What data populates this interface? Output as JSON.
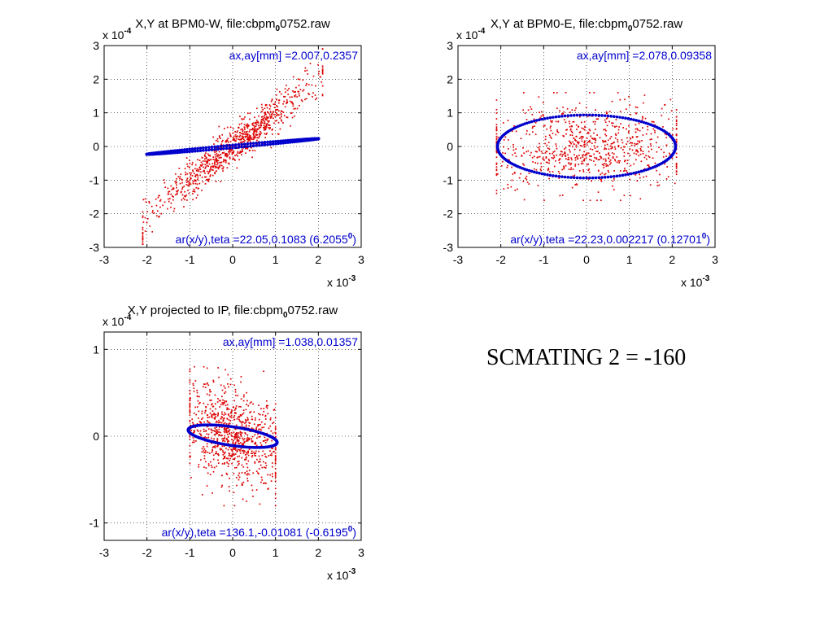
{
  "caption": "SCMATING 2 = -160",
  "colors": {
    "points": "#dd0000",
    "ellipse": "#0000cc",
    "annotation": "#0000cc"
  },
  "chart_data": [
    {
      "type": "scatter",
      "id": "bpm0w",
      "title_a": "X,Y at BPM0-W, file:cbpm",
      "title_sub": "0",
      "title_b": "0752.raw",
      "x_ticks": [
        "-3",
        "-2",
        "-1",
        "0",
        "1",
        "2",
        "3"
      ],
      "y_ticks": [
        "-3",
        "-2",
        "-1",
        "0",
        "1",
        "2",
        "3"
      ],
      "x_multiplier": "x 10",
      "x_exp": "-3",
      "y_multiplier": "x 10",
      "y_exp": "-4",
      "xlim": [
        -3,
        3
      ],
      "ylim": [
        -3,
        3
      ],
      "annotation_top": "ax,ay[mm] =2.007,0.2357",
      "annotation_bottom": "ar(x/y),teta =22.05,0.1083 (6.2055",
      "annotation_bottom_sup": "0",
      "annotation_bottom_end": ")",
      "ellipse": {
        "center": [
          0,
          0
        ],
        "ax": 2.007,
        "ay": 0.2357,
        "corr": 0.985
      },
      "scatter_stats": {
        "sx": 1.0,
        "sy": 1.05,
        "rho": 0.96,
        "x_clip": 2.1,
        "y_clip": 2.9,
        "n": 900
      }
    },
    {
      "type": "scatter",
      "id": "bpm0e",
      "title_a": "X,Y at BPM0-E, file:cbpm",
      "title_sub": "0",
      "title_b": "0752.raw",
      "x_ticks": [
        "-3",
        "-2",
        "-1",
        "0",
        "1",
        "2",
        "3"
      ],
      "y_ticks": [
        "-3",
        "-2",
        "-1",
        "0",
        "1",
        "2",
        "3"
      ],
      "x_multiplier": "x 10",
      "x_exp": "-3",
      "y_multiplier": "x 10",
      "y_exp": "-4",
      "xlim": [
        -3,
        3
      ],
      "ylim": [
        -3,
        3
      ],
      "annotation_top": "ax,ay[mm] =2.078,0.09358",
      "annotation_bottom": "ar(x/y),teta =22.23,0.002217 (0.12701",
      "annotation_bottom_sup": "0",
      "annotation_bottom_end": ")",
      "ellipse": {
        "center": [
          0,
          0
        ],
        "ax": 2.078,
        "ay": 0.9358,
        "corr": 0.0
      },
      "scatter_stats": {
        "sx": 1.2,
        "sy": 0.65,
        "rho": 0.0,
        "x_clip": 2.1,
        "y_clip": 1.6,
        "n": 800
      }
    },
    {
      "type": "scatter",
      "id": "ip",
      "title_a": "X,Y projected to IP, file:cbpm",
      "title_sub": "0",
      "title_b": "0752.raw",
      "x_ticks": [
        "-3",
        "-2",
        "-1",
        "0",
        "1",
        "2",
        "3"
      ],
      "y_ticks": [
        "-1",
        "0",
        "1"
      ],
      "x_multiplier": "x 10",
      "x_exp": "-3",
      "y_multiplier": "x 10",
      "y_exp": "-4",
      "xlim": [
        -3,
        3
      ],
      "ylim": [
        -1.2,
        1.2
      ],
      "annotation_top": "ax,ay[mm] =1.038,0.01357",
      "annotation_bottom": "ar(x/y),teta =136.1,-0.01081 (-0.6195",
      "annotation_bottom_sup": "0",
      "annotation_bottom_end": ")",
      "ellipse": {
        "center": [
          0,
          0
        ],
        "ax": 1.038,
        "ay": 0.13,
        "corr": -0.55
      },
      "scatter_stats": {
        "sx": 0.6,
        "sy": 0.28,
        "rho": -0.35,
        "x_clip": 1.0,
        "y_clip": 0.8,
        "n": 900
      }
    }
  ]
}
